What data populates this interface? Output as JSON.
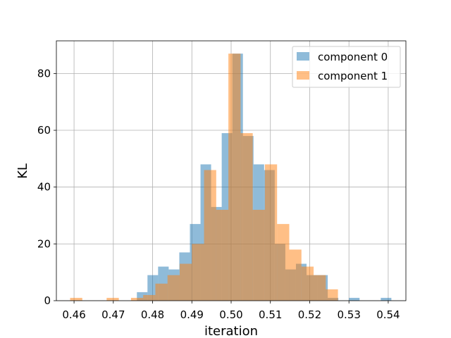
{
  "chart_data": {
    "type": "bar",
    "subtype": "overlapping-histogram",
    "xlabel": "iteration",
    "ylabel": "KL",
    "xlim": [
      0.4555,
      0.5445
    ],
    "ylim": [
      0,
      91.5
    ],
    "xticks": [
      "0.46",
      "0.47",
      "0.48",
      "0.49",
      "0.50",
      "0.51",
      "0.52",
      "0.53",
      "0.54"
    ],
    "yticks": [
      "0",
      "20",
      "40",
      "60",
      "80"
    ],
    "grid": true,
    "legend": "top-right",
    "series": [
      {
        "name": "component 0",
        "color": "#1f77b4",
        "alpha": 0.5,
        "bins": [
          [
            0.476,
            0.4787,
            3
          ],
          [
            0.4787,
            0.4814,
            9
          ],
          [
            0.4814,
            0.4841,
            12
          ],
          [
            0.4841,
            0.4868,
            11
          ],
          [
            0.4868,
            0.4895,
            17
          ],
          [
            0.4895,
            0.4922,
            27
          ],
          [
            0.4922,
            0.4949,
            48
          ],
          [
            0.4949,
            0.4976,
            33
          ],
          [
            0.4976,
            0.5003,
            59
          ],
          [
            0.5003,
            0.503,
            87
          ],
          [
            0.503,
            0.5057,
            58
          ],
          [
            0.5057,
            0.5084,
            48
          ],
          [
            0.5084,
            0.5111,
            46
          ],
          [
            0.5111,
            0.5138,
            20
          ],
          [
            0.5138,
            0.5165,
            11
          ],
          [
            0.5165,
            0.5192,
            13
          ],
          [
            0.5192,
            0.5219,
            9
          ],
          [
            0.5219,
            0.5246,
            9
          ],
          [
            0.5246,
            0.5273,
            1
          ],
          [
            0.5273,
            0.53,
            0
          ],
          [
            0.53,
            0.5327,
            1
          ],
          [
            0.5327,
            0.5381,
            0
          ],
          [
            0.5381,
            0.5408,
            1
          ]
        ]
      },
      {
        "name": "component 1",
        "color": "#ff7f0e",
        "alpha": 0.5,
        "bins": [
          [
            0.459,
            0.4621,
            1
          ],
          [
            0.4652,
            0.4683,
            0
          ],
          [
            0.4683,
            0.4714,
            1
          ],
          [
            0.4714,
            0.4745,
            0
          ],
          [
            0.4745,
            0.4776,
            1
          ],
          [
            0.4776,
            0.4807,
            2
          ],
          [
            0.4807,
            0.4838,
            6
          ],
          [
            0.4838,
            0.4869,
            9
          ],
          [
            0.4869,
            0.49,
            13
          ],
          [
            0.49,
            0.4931,
            20
          ],
          [
            0.4931,
            0.4962,
            46
          ],
          [
            0.4962,
            0.4993,
            32
          ],
          [
            0.4993,
            0.5024,
            87
          ],
          [
            0.5024,
            0.5055,
            59
          ],
          [
            0.5055,
            0.5086,
            32
          ],
          [
            0.5086,
            0.5117,
            48
          ],
          [
            0.5117,
            0.5148,
            27
          ],
          [
            0.5148,
            0.5179,
            18
          ],
          [
            0.5179,
            0.521,
            12
          ],
          [
            0.521,
            0.5241,
            9
          ],
          [
            0.5241,
            0.5272,
            4
          ]
        ]
      }
    ]
  }
}
